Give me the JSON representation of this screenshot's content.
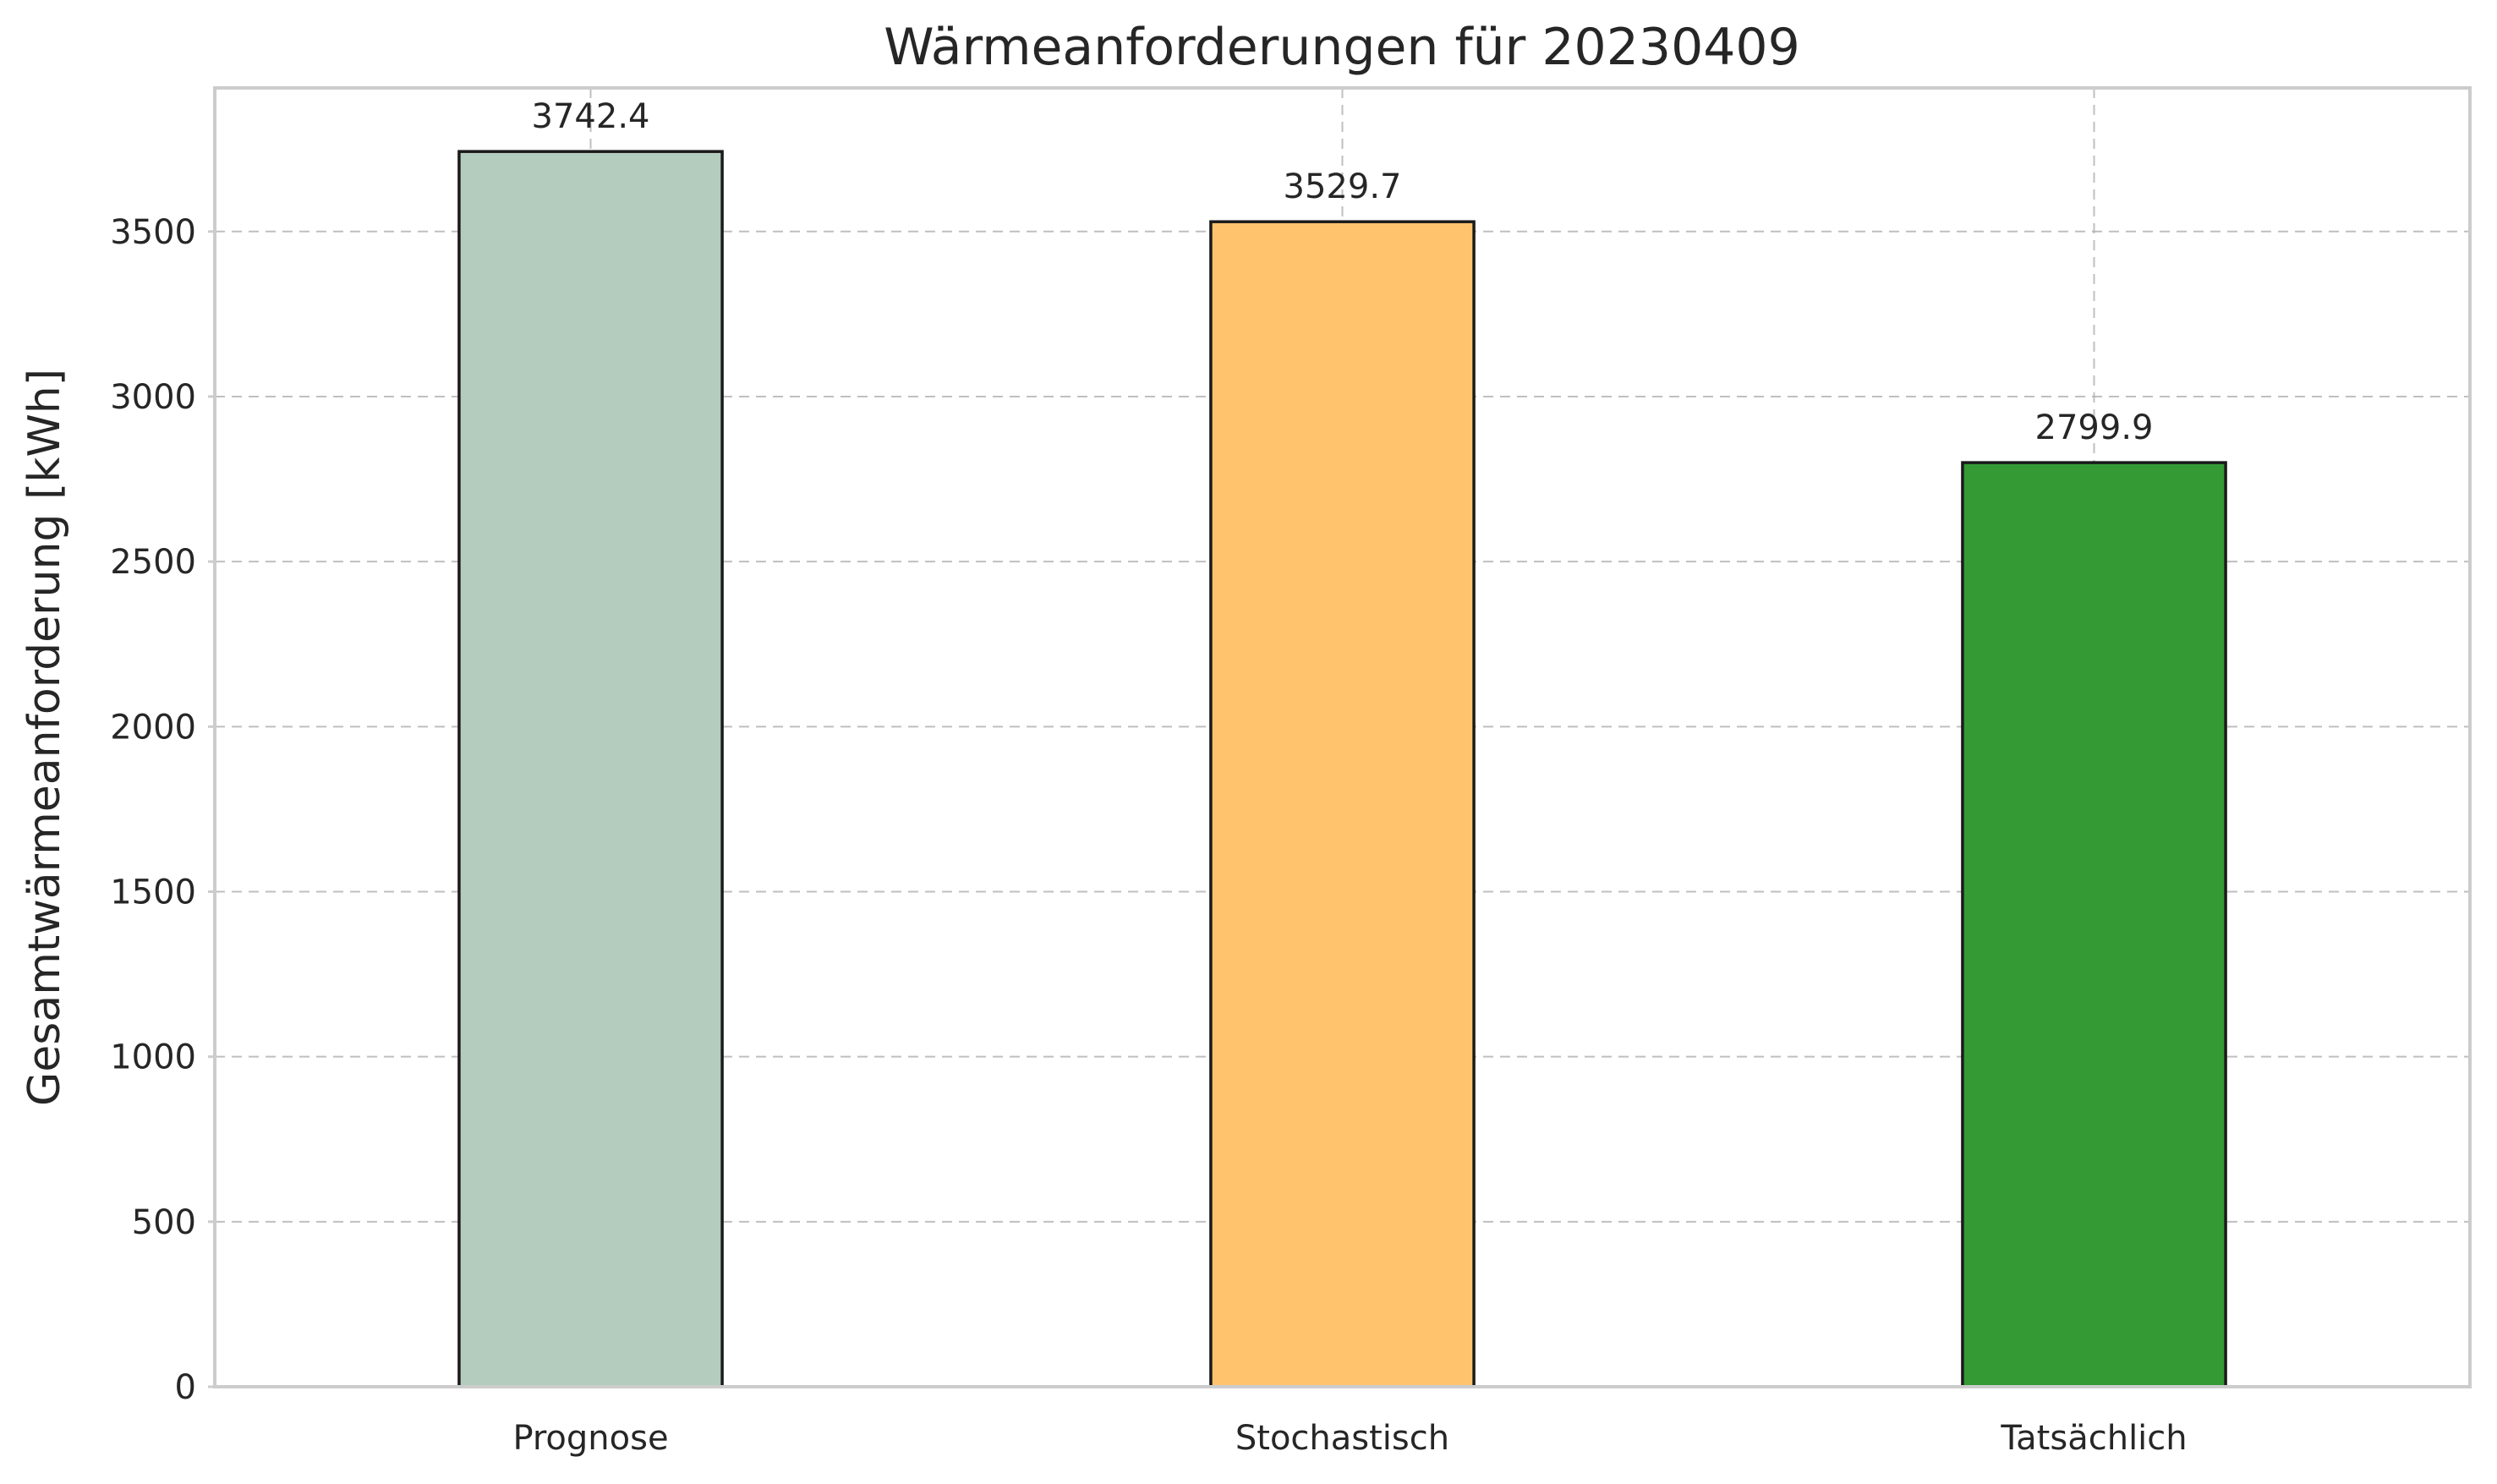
{
  "chart_data": {
    "type": "bar",
    "title": "Wärmeanforderungen für 20230409",
    "xlabel": "",
    "ylabel": "Gesamtwärmeanforderung [kWh]",
    "categories": [
      "Prognose",
      "Stochastisch",
      "Tatsächlich"
    ],
    "values": [
      3742.4,
      3529.7,
      2799.9
    ],
    "value_labels": [
      "3742.4",
      "3529.7",
      "2799.9"
    ],
    "colors": [
      "#b4ccbd",
      "#ffc36e",
      "#349a34"
    ],
    "ylim": [
      0,
      3935
    ],
    "yticks": [
      0,
      500,
      1000,
      1500,
      2000,
      2500,
      3000,
      3500
    ],
    "grid": true,
    "legend": "none"
  }
}
